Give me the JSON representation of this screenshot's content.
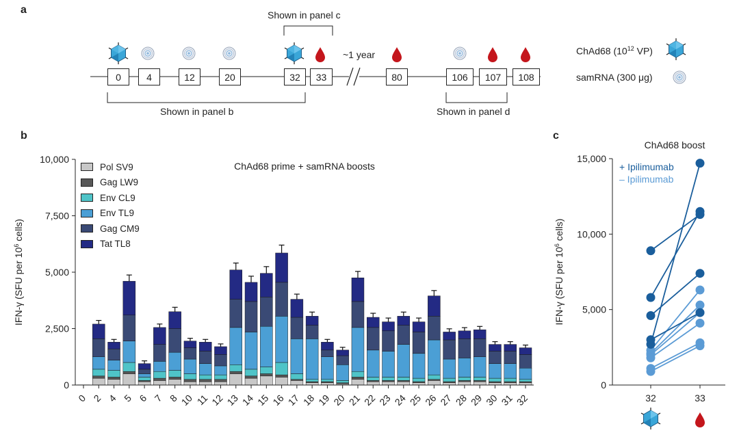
{
  "panel_labels": {
    "a": "a",
    "b": "b",
    "c": "c"
  },
  "timeline": {
    "boxes": [
      "0",
      "4",
      "12",
      "20",
      "32",
      "33",
      "80",
      "106",
      "107",
      "108"
    ],
    "gap_label": "~1 year",
    "shown_c": "Shown in panel c",
    "shown_b": "Shown in panel b",
    "shown_d": "Shown in panel d",
    "legend_chad_prefix": "ChAd68 (10",
    "legend_chad_exp": "12",
    "legend_chad_suffix": " VP)",
    "legend_samrna": "samRNA (300 μg)",
    "symbols": [
      "chad-icon",
      "samrna-icon",
      "samrna-icon",
      "samrna-icon",
      "chad-icon",
      "blood-drop-icon",
      "blood-drop-icon",
      "samrna-icon",
      "blood-drop-icon",
      "blood-drop-icon"
    ],
    "colors": {
      "chad": "#3aa6d8",
      "samrna": "#8fa6c8",
      "blood": "#c4161c"
    }
  },
  "chart_data": [
    {
      "type": "bar",
      "stacked": true,
      "title": "ChAd68 prime + samRNA boosts",
      "ylabel": "IFN-γ (SFU per 10",
      "ylabel_exp": "6",
      "ylabel_suffix": " cells)",
      "ylim": [
        0,
        10000
      ],
      "yticks": [
        0,
        2500,
        5000,
        7500,
        10000
      ],
      "ytick_labels": [
        "0",
        "2,500",
        "5,000",
        "7,500",
        "10,000"
      ],
      "categories": [
        "0",
        "2",
        "4",
        "5",
        "6",
        "7",
        "8",
        "10",
        "11",
        "12",
        "13",
        "14",
        "15",
        "16",
        "17",
        "18",
        "19",
        "20",
        "21",
        "22",
        "23",
        "24",
        "25",
        "26",
        "27",
        "28",
        "29",
        "30",
        "31",
        "32"
      ],
      "series": [
        {
          "name": "Pol SV9",
          "color": "#c8c8c8",
          "values": [
            10,
            300,
            250,
            500,
            150,
            200,
            250,
            150,
            150,
            150,
            500,
            300,
            400,
            350,
            200,
            100,
            100,
            50,
            250,
            150,
            150,
            150,
            100,
            200,
            100,
            150,
            150,
            100,
            100,
            100
          ]
        },
        {
          "name": "Gag LW9",
          "color": "#585858",
          "values": [
            0,
            100,
            100,
            100,
            50,
            100,
            100,
            100,
            100,
            100,
            100,
            100,
            100,
            100,
            50,
            50,
            50,
            50,
            100,
            50,
            50,
            50,
            50,
            50,
            50,
            50,
            50,
            50,
            50,
            50
          ]
        },
        {
          "name": "Env CL9",
          "color": "#4fc4c8",
          "values": [
            0,
            300,
            300,
            400,
            150,
            300,
            300,
            250,
            200,
            200,
            300,
            300,
            300,
            550,
            250,
            100,
            100,
            100,
            250,
            150,
            150,
            150,
            150,
            200,
            150,
            150,
            150,
            150,
            150,
            100
          ]
        },
        {
          "name": "Env TL9",
          "color": "#4b9fd5",
          "values": [
            0,
            550,
            450,
            950,
            150,
            450,
            800,
            650,
            500,
            400,
            1650,
            1650,
            1800,
            2050,
            1550,
            1800,
            1000,
            700,
            1950,
            1200,
            1150,
            1450,
            1100,
            1550,
            850,
            850,
            900,
            650,
            650,
            500
          ]
        },
        {
          "name": "Gag CM9",
          "color": "#3a4a75",
          "values": [
            0,
            800,
            500,
            1150,
            200,
            750,
            1050,
            500,
            550,
            500,
            1250,
            1350,
            1300,
            1500,
            950,
            600,
            300,
            400,
            1150,
            1000,
            900,
            850,
            950,
            1050,
            850,
            850,
            800,
            550,
            550,
            600
          ]
        },
        {
          "name": "Tat TL8",
          "color": "#232a84",
          "values": [
            0,
            650,
            300,
            1500,
            250,
            750,
            750,
            300,
            400,
            350,
            1300,
            850,
            1050,
            1300,
            800,
            400,
            350,
            250,
            1050,
            450,
            400,
            400,
            450,
            900,
            350,
            350,
            400,
            300,
            300,
            300
          ]
        }
      ],
      "legend_position": "top-left",
      "grid": false
    },
    {
      "type": "scatter",
      "title": "ChAd68 boost",
      "ylabel": "IFN-γ (SFU per 10",
      "ylabel_exp": "6",
      "ylabel_suffix": " cells)",
      "ylim": [
        0,
        15000
      ],
      "yticks": [
        0,
        5000,
        10000,
        15000
      ],
      "ytick_labels": [
        "0",
        "5,000",
        "10,000",
        "15,000"
      ],
      "x": [
        "32",
        "33"
      ],
      "legend_position": "top-left",
      "series": [
        {
          "name": "+ Ipilimumab",
          "color": "#1a5e9c",
          "pairs": [
            [
              8900,
              11300
            ],
            [
              5800,
              11500
            ],
            [
              4600,
              7400
            ],
            [
              3000,
              4800
            ],
            [
              2700,
              14700
            ]
          ]
        },
        {
          "name": "– Ipilimumab",
          "color": "#5b9bd5",
          "pairs": [
            [
              2300,
              6300
            ],
            [
              2100,
              5300
            ],
            [
              2000,
              4800
            ],
            [
              1800,
              4100
            ],
            [
              1100,
              2800
            ],
            [
              900,
              2600
            ]
          ]
        }
      ]
    }
  ]
}
